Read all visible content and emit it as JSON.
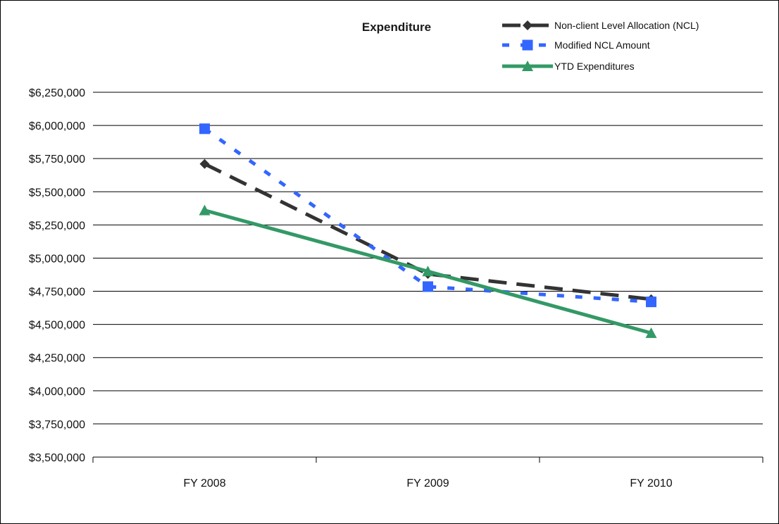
{
  "chart_data": {
    "type": "line",
    "title": "Expenditure",
    "categories": [
      "FY 2008",
      "FY 2009",
      "FY 2010"
    ],
    "ylim": [
      3500000,
      6250000
    ],
    "yticks": [
      3500000,
      3750000,
      4000000,
      4250000,
      4500000,
      4750000,
      5000000,
      5250000,
      5500000,
      5750000,
      6000000,
      6250000
    ],
    "ytick_labels": [
      "$3,500,000",
      "$3,750,000",
      "$4,000,000",
      "$4,250,000",
      "$4,500,000",
      "$4,750,000",
      "$5,000,000",
      "$5,250,000",
      "$5,500,000",
      "$5,750,000",
      "$6,000,000",
      "$6,250,000"
    ],
    "grid": true,
    "legend_position": "top-right",
    "series": [
      {
        "name": "Non-client Level Allocation (NCL)",
        "values": [
          5710000,
          4880000,
          4690000
        ],
        "color": "#333333",
        "marker": "diamond",
        "dash": "long-dash"
      },
      {
        "name": "Modified NCL Amount",
        "values": [
          5975000,
          4785000,
          4670000
        ],
        "color": "#3366ff",
        "marker": "square",
        "dash": "short-dash"
      },
      {
        "name": "YTD Expenditures",
        "values": [
          5360000,
          4900000,
          4435000
        ],
        "color": "#339966",
        "marker": "triangle",
        "dash": "solid"
      }
    ]
  }
}
